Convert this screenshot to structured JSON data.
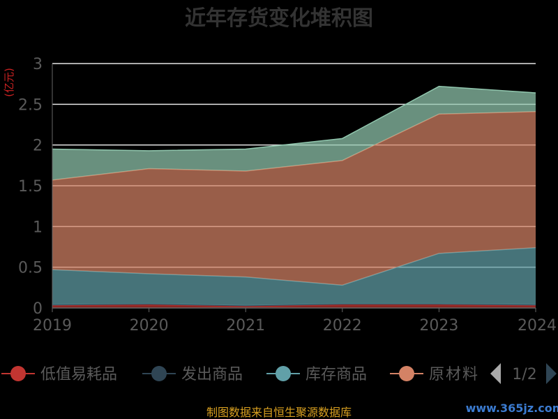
{
  "title": "近年存货变化堆积图",
  "unit_label": "(亿元)",
  "source_text": "制图数据来自恒生聚源数据库",
  "watermark": "www.365jz.com",
  "legend_page": "1/2",
  "colors": {
    "grid": "#e6e6e6",
    "axis": "#666666",
    "prev_arrow": "#aaaaaa",
    "next_arrow": "#2f4554"
  },
  "chart_data": {
    "type": "area",
    "stacked": true,
    "title": "近年存货变化堆积图",
    "ylabel": "(亿元)",
    "x": [
      "2019",
      "2020",
      "2021",
      "2022",
      "2023",
      "2024"
    ],
    "yticks": [
      "0",
      "0.5",
      "1",
      "1.5",
      "2",
      "2.5",
      "3"
    ],
    "ylim": [
      0,
      3
    ],
    "grid": true,
    "legend_position": "bottom",
    "series": [
      {
        "name": "低值易耗品",
        "color": "#c23531",
        "values": [
          0.03,
          0.04,
          0.02,
          0.04,
          0.04,
          0.03
        ]
      },
      {
        "name": "发出商品",
        "color": "#2f4554",
        "values": [
          0.01,
          0.01,
          0.01,
          0.01,
          0.01,
          0.01
        ]
      },
      {
        "name": "库存商品",
        "color": "#61a0a8",
        "values": [
          0.43,
          0.37,
          0.35,
          0.23,
          0.62,
          0.7
        ]
      },
      {
        "name": "原材料",
        "color": "#d48265",
        "values": [
          1.1,
          1.29,
          1.3,
          1.53,
          1.71,
          1.67
        ]
      },
      {
        "name": "",
        "color": "#91c7ae",
        "values": [
          0.38,
          0.22,
          0.27,
          0.27,
          0.34,
          0.23
        ]
      }
    ]
  }
}
